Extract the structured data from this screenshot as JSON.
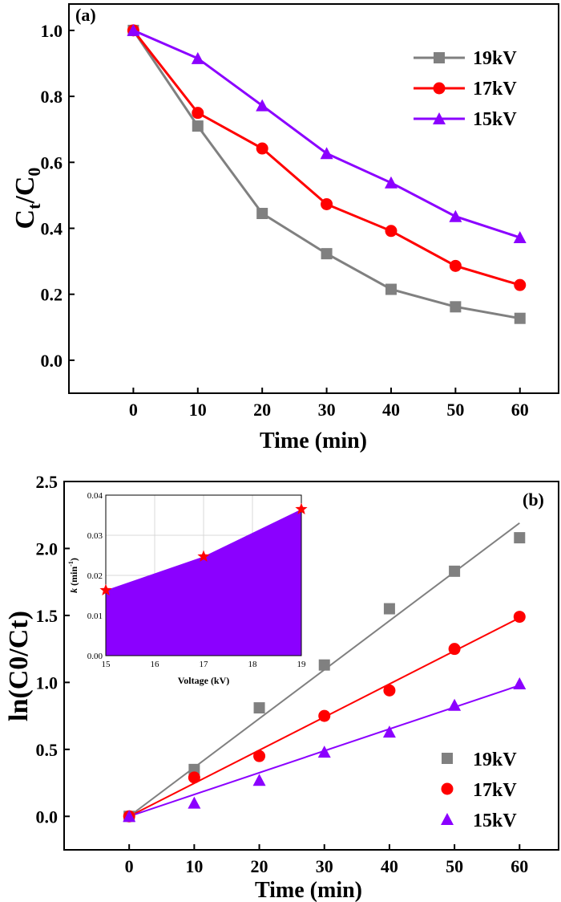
{
  "chart_data": [
    {
      "type": "line",
      "label": "(a)",
      "xlabel": "Time (min)",
      "ylabel_main": "C",
      "ylabel_sub1": "t",
      "ylabel_mid": "/C",
      "ylabel_sub2": "0",
      "x": [
        0,
        10,
        20,
        30,
        40,
        50,
        60
      ],
      "xlim": [
        -10,
        66
      ],
      "ylim": [
        -0.1,
        1.08
      ],
      "xticks": [
        "0",
        "10",
        "20",
        "30",
        "40",
        "50",
        "60"
      ],
      "yticks": [
        "0.0",
        "0.2",
        "0.4",
        "0.6",
        "0.8",
        "1.0"
      ],
      "series": [
        {
          "name": "19kV",
          "color": "#808080",
          "marker": "square",
          "values": [
            1.0,
            0.71,
            0.445,
            0.323,
            0.215,
            0.162,
            0.127
          ]
        },
        {
          "name": "17kV",
          "color": "#ff0000",
          "marker": "circle",
          "values": [
            1.0,
            0.75,
            0.642,
            0.473,
            0.392,
            0.286,
            0.228
          ]
        },
        {
          "name": "15kV",
          "color": "#8b00ff",
          "marker": "triangle",
          "values": [
            1.0,
            0.915,
            0.772,
            0.627,
            0.538,
            0.436,
            0.372
          ]
        }
      ],
      "legend_position": "top-right",
      "grid": false
    },
    {
      "type": "scatter",
      "label": "(b)",
      "xlabel": "Time (min)",
      "ylabel": "ln(C0/Ct)",
      "x": [
        0,
        10,
        20,
        30,
        40,
        50,
        60
      ],
      "xlim": [
        -10,
        66
      ],
      "ylim": [
        -0.25,
        2.5
      ],
      "xticks": [
        "0",
        "10",
        "20",
        "30",
        "40",
        "50",
        "60"
      ],
      "yticks": [
        "0.0",
        "0.5",
        "1.0",
        "1.5",
        "2.0",
        "2.5"
      ],
      "series": [
        {
          "name": "19kV",
          "color": "#808080",
          "marker": "square",
          "values": [
            0.0,
            0.35,
            0.81,
            1.13,
            1.55,
            1.83,
            2.08
          ],
          "fit_slope": 0.0365
        },
        {
          "name": "17kV",
          "color": "#ff0000",
          "marker": "circle",
          "values": [
            0.0,
            0.29,
            0.45,
            0.75,
            0.94,
            1.25,
            1.49
          ],
          "fit_slope": 0.0247
        },
        {
          "name": "15kV",
          "color": "#8b00ff",
          "marker": "triangle",
          "values": [
            0.0,
            0.1,
            0.27,
            0.48,
            0.63,
            0.83,
            0.99
          ],
          "fit_slope": 0.0163
        }
      ],
      "legend_position": "bottom-right",
      "grid": false
    },
    {
      "type": "area",
      "role": "inset",
      "xlabel": "Voltage (kV)",
      "ylabel_italic": "k",
      "ylabel_rest": " (min",
      "ylabel_sup": "-1",
      "ylabel_close": ")",
      "x": [
        15,
        17,
        19
      ],
      "values": [
        0.0163,
        0.0247,
        0.0365
      ],
      "xlim": [
        15,
        19
      ],
      "ylim": [
        0,
        0.04
      ],
      "xticks": [
        "15",
        "16",
        "17",
        "18",
        "19"
      ],
      "yticks": [
        "0.00",
        "0.01",
        "0.02",
        "0.03",
        "0.04"
      ],
      "fill_color": "#8b00ff",
      "marker_color": "#ff0000",
      "marker": "star",
      "grid": true
    }
  ]
}
